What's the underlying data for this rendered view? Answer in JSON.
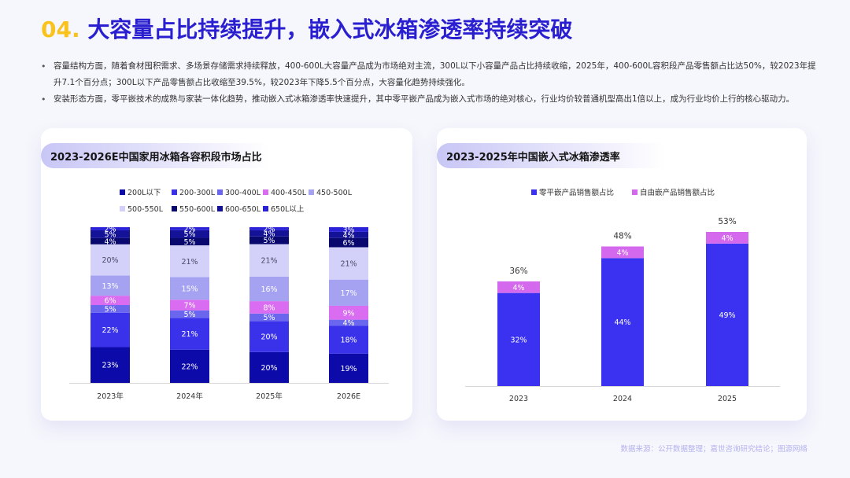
{
  "title": {
    "num": "04.",
    "text": " 大容量占比持续提升，嵌入式冰箱渗透率持续突破"
  },
  "bullets": [
    "容量结构方面，随着食材囤积需求、多场景存储需求持续释放，400-600L大容量产品成为市场绝对主流，300L以下小容量产品占比持续收缩，2025年，400-600L容积段产品零售额占比达50%，较2023年提升7.1个百分点；300L以下产品零售额占比收缩至39.5%，较2023年下降5.5个百分点，大容量化趋势持续强化。",
    "安装形态方面，零平嵌技术的成熟与家装一体化趋势，推动嵌入式冰箱渗透率快速提升，其中零平嵌产品成为嵌入式市场的绝对核心，行业均价较普通机型高出1倍以上，成为行业均价上行的核心驱动力。"
  ],
  "left_card": {
    "title": "2023-2026E中国家用冰箱各容积段市场占比"
  },
  "right_card": {
    "title": "2023-2025年中国嵌入式冰箱渗透率"
  },
  "footer": "数据来源：公开数据整理；嘉世咨询研究结论；图源网络",
  "chart_data": [
    {
      "type": "bar",
      "stacked": true,
      "title": "2023-2026E中国家用冰箱各容积段市场占比",
      "categories": [
        "2023年",
        "2024年",
        "2025年",
        "2026E"
      ],
      "legend_placement": "top",
      "grid": false,
      "series": [
        {
          "name": "200L以下",
          "color": "#0c0aa8",
          "values": [
            23,
            22,
            20,
            19
          ]
        },
        {
          "name": "200-300L",
          "color": "#3a32ea",
          "values": [
            22,
            21,
            20,
            18
          ]
        },
        {
          "name": "300-400L",
          "color": "#6b66ee",
          "values": [
            5,
            5,
            5,
            4
          ]
        },
        {
          "name": "400-450L",
          "color": "#d96cf0",
          "values": [
            6,
            7,
            8,
            9
          ]
        },
        {
          "name": "450-500L",
          "color": "#a6a2f2",
          "values": [
            13,
            15,
            16,
            17
          ]
        },
        {
          "name": "500-550L",
          "color": "#d3d1fa",
          "values": [
            20,
            21,
            21,
            21
          ]
        },
        {
          "name": "550-600L",
          "color": "#08086e",
          "values": [
            4,
            5,
            5,
            6
          ]
        },
        {
          "name": "600-650L",
          "color": "#141296",
          "values": [
            5,
            5,
            4,
            4
          ]
        },
        {
          "name": "650L以上",
          "color": "#2a22d6",
          "values": [
            2,
            2,
            2,
            3
          ]
        }
      ],
      "value_suffix": "%"
    },
    {
      "type": "bar",
      "stacked": true,
      "title": "2023-2025年中国嵌入式冰箱渗透率",
      "categories": [
        "2023",
        "2024",
        "2025"
      ],
      "legend_placement": "top",
      "grid": false,
      "series": [
        {
          "name": "零平嵌产品销售额占比",
          "color": "#3a32f0",
          "values": [
            32,
            44,
            49
          ]
        },
        {
          "name": "自由嵌产品销售额占比",
          "color": "#d469ee",
          "values": [
            4,
            4,
            4
          ]
        }
      ],
      "totals": [
        36,
        48,
        53
      ],
      "value_suffix": "%"
    }
  ]
}
